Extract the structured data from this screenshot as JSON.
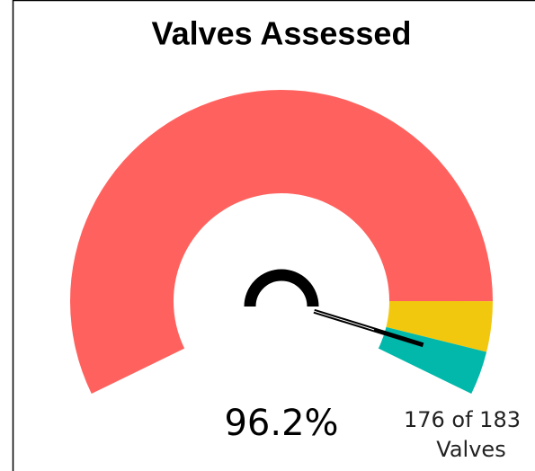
{
  "chart_data": {
    "type": "gauge",
    "title": "Valves Assessed",
    "value": 96.2,
    "value_label": "96.2%",
    "range": [
      0,
      100
    ],
    "bands": [
      {
        "from": 0,
        "to": 88.8,
        "color": "#ff625e"
      },
      {
        "from": 88.8,
        "to": 94.8,
        "color": "#f2c80f"
      },
      {
        "from": 94.8,
        "to": 100,
        "color": "#01b8aa"
      }
    ],
    "detail": [
      "176 of 183",
      "Valves"
    ]
  }
}
